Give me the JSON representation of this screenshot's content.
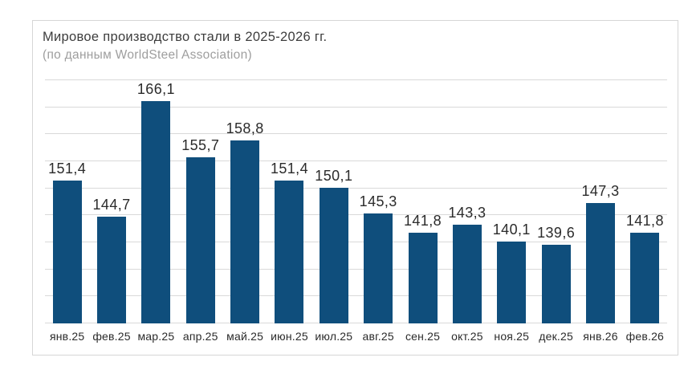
{
  "chart_data": {
    "type": "bar",
    "title": "Мировое производство стали в 2025-2026 гг.",
    "subtitle": "(по данным WorldSteel Association)",
    "categories": [
      "янв.25",
      "фев.25",
      "мар.25",
      "апр.25",
      "май.25",
      "июн.25",
      "июл.25",
      "авг.25",
      "сен.25",
      "окт.25",
      "ноя.25",
      "дек.25",
      "янв.26",
      "фев.26"
    ],
    "values": [
      151.4,
      144.7,
      166.1,
      155.7,
      158.8,
      151.4,
      150.1,
      145.3,
      141.8,
      143.3,
      140.1,
      139.6,
      147.3,
      141.8
    ],
    "value_labels": [
      "151,4",
      "144,7",
      "166,1",
      "155,7",
      "158,8",
      "151,4",
      "150,1",
      "145,3",
      "141,8",
      "143,3",
      "140,1",
      "139,6",
      "147,3",
      "141,8"
    ],
    "xlabel": "",
    "ylabel": "",
    "ylim": [
      125,
      170
    ],
    "grid_step": 5,
    "grid": true,
    "legend": false,
    "colors": {
      "bar": "#0f4e7c",
      "grid": "#d9d9d9",
      "value_label": "#2b2b2b",
      "tick_label": "#2b2b2b",
      "card_border": "#d6d6d6",
      "title": "#3d3d3d",
      "subtitle": "#9e9e9e"
    }
  }
}
